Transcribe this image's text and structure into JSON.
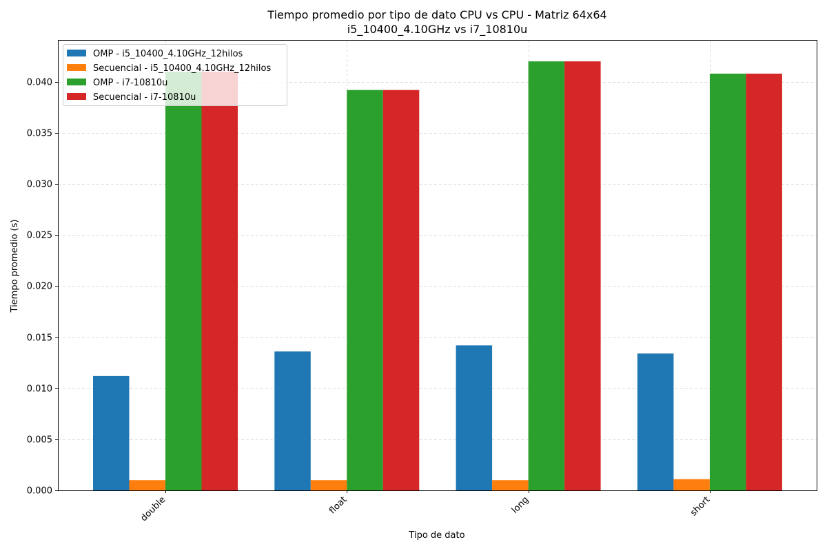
{
  "chart_data": {
    "type": "bar",
    "title": "Tiempo promedio por tipo de dato CPU vs CPU - Matriz 64x64",
    "subtitle": "i5_10400_4.10GHz vs i7_10810u",
    "xlabel": "Tipo de dato",
    "ylabel": "Tiempo promedio (s)",
    "categories": [
      "double",
      "float",
      "long",
      "short"
    ],
    "ylim": [
      0,
      0.0441
    ],
    "yticks": [
      "0.000",
      "0.005",
      "0.010",
      "0.015",
      "0.020",
      "0.025",
      "0.030",
      "0.035",
      "0.040"
    ],
    "grid": true,
    "legend_position": "top-left",
    "series": [
      {
        "name": "OMP - i5_10400_4.10GHz_12hilos",
        "color": "#1f77b4",
        "values": [
          0.0112,
          0.0136,
          0.0142,
          0.0134
        ]
      },
      {
        "name": "Secuencial - i5_10400_4.10GHz_12hilos",
        "color": "#ff7f0e",
        "values": [
          0.001,
          0.001,
          0.001,
          0.0011
        ]
      },
      {
        "name": "OMP - i7-10810u",
        "color": "#2ca02c",
        "values": [
          0.041,
          0.0392,
          0.042,
          0.0408
        ]
      },
      {
        "name": "Secuencial - i7-10810u",
        "color": "#d62728",
        "values": [
          0.041,
          0.0392,
          0.042,
          0.0408
        ]
      }
    ]
  }
}
